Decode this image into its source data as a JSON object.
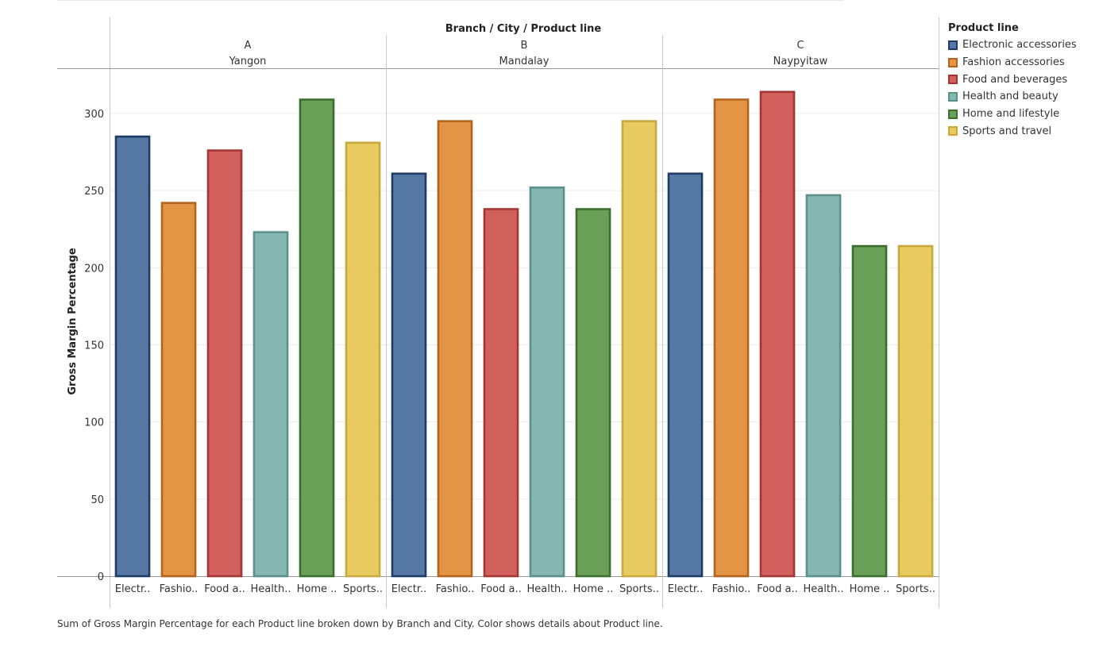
{
  "chart_data": {
    "type": "bar",
    "title": "Branch / City / Product line",
    "ylabel": "Gross Margin Percentage",
    "ylim": [
      0,
      330
    ],
    "yticks": [
      "0",
      "50",
      "100",
      "150",
      "200",
      "250",
      "300"
    ],
    "ytick_values": [
      0,
      50,
      100,
      150,
      200,
      250,
      300
    ],
    "groups": [
      {
        "branch": "A",
        "city": "Yangon",
        "tick_labels": [
          "Electr..",
          "Fashio..",
          "Food a..",
          "Health..",
          "Home ..",
          "Sports.."
        ],
        "values": [
          285,
          242,
          276,
          223,
          309,
          281
        ]
      },
      {
        "branch": "B",
        "city": "Mandalay",
        "tick_labels": [
          "Electr..",
          "Fashio..",
          "Food a..",
          "Health..",
          "Home ..",
          "Sports.."
        ],
        "values": [
          261,
          295,
          238,
          252,
          238,
          295
        ]
      },
      {
        "branch": "C",
        "city": "Naypyitaw",
        "tick_labels": [
          "Electr..",
          "Fashio..",
          "Food a..",
          "Health..",
          "Home ..",
          "Sports.."
        ],
        "values": [
          261,
          309,
          314,
          247,
          214,
          214
        ]
      }
    ],
    "categories": [
      "Electronic accessories",
      "Fashion accessories",
      "Food and beverages",
      "Health and beauty",
      "Home and lifestyle",
      "Sports and travel"
    ],
    "legend_title": "Product line",
    "colors": {
      "fill": [
        "#5778a4",
        "#e49444",
        "#d1615d",
        "#85b6b2",
        "#6a9f58",
        "#e7ca60"
      ],
      "edge": [
        "#1f3b66",
        "#b4641c",
        "#a33431",
        "#5a918c",
        "#3b6e2c",
        "#c9a93a"
      ]
    },
    "caption": "Sum of Gross Margin Percentage for each Product line broken down by Branch and City.  Color shows details about Product line."
  }
}
